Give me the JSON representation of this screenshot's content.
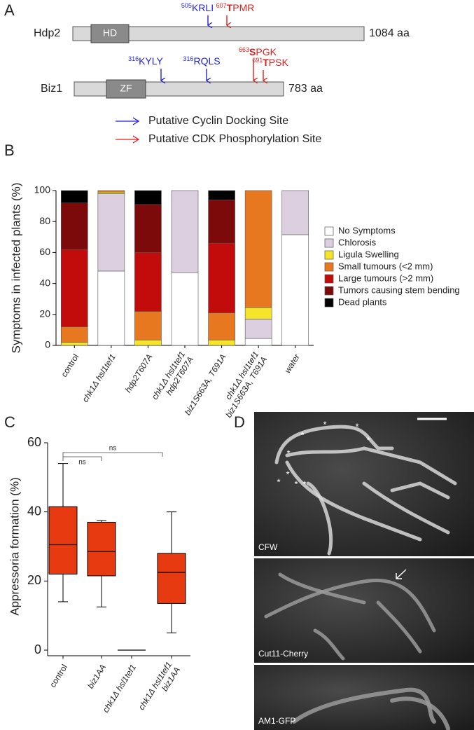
{
  "panel_a": {
    "letter": "A",
    "proteins": [
      {
        "name": "Hdp2",
        "domain": "HD",
        "length": "1084 aa",
        "sites": [
          {
            "sup": "505",
            "bold": "",
            "rest": "KRLI",
            "color": "#1f1fe0"
          },
          {
            "sup": "607",
            "bold": "T",
            "rest": "PMR",
            "color": "#e01f1f"
          }
        ]
      },
      {
        "name": "Biz1",
        "domain": "ZF",
        "length": "783 aa",
        "sites": [
          {
            "sup": "316",
            "bold": "",
            "rest": "KYLY",
            "color": "#1f1fe0"
          },
          {
            "sup": "316",
            "bold": "",
            "rest": "RQLS",
            "color": "#1f1fe0"
          },
          {
            "sup": "663",
            "bold": "S",
            "rest": "PGK",
            "color": "#e01f1f"
          },
          {
            "sup": "691",
            "bold": "T",
            "rest": "PSK",
            "color": "#e01f1f"
          }
        ]
      }
    ],
    "legend": [
      {
        "label": "Putative Cyclin Docking Site",
        "color": "#1f1fe0"
      },
      {
        "label": "Putative CDK Phosphorylation Site",
        "color": "#e01f1f"
      }
    ]
  },
  "chart_data": [
    {
      "type": "stacked_bar",
      "letter": "B",
      "y_label": "Symptoms in infected plants (%)",
      "categories": [
        [
          "control"
        ],
        [
          "chk1Δ hsl1tef1"
        ],
        [
          "hdp2T607A"
        ],
        [
          "chk1Δ hsl1tef1",
          "hdp2T607A"
        ],
        [
          "biz1S663A, T691A"
        ],
        [
          "chk1Δ hsl1tef1",
          "biz1S663A, T691A"
        ],
        [
          "water"
        ]
      ],
      "series": [
        {
          "name": "No Symptoms",
          "color": "#ffffff",
          "values": [
            0,
            48,
            0,
            47,
            0,
            4.5,
            71.5
          ]
        },
        {
          "name": "Chlorosis",
          "color": "#dccfe0",
          "values": [
            0,
            50,
            0,
            53,
            0,
            12.5,
            28.5
          ]
        },
        {
          "name": "Ligula Swelling",
          "color": "#f5e42a",
          "values": [
            2,
            1,
            3.5,
            0,
            3.5,
            7.5,
            0
          ]
        },
        {
          "name": "Small tumours (<2 mm)",
          "color": "#e8781f",
          "values": [
            10,
            1,
            18.5,
            0,
            17.5,
            75.5,
            0
          ]
        },
        {
          "name": "Large tumours (>2 mm)",
          "color": "#c20c0c",
          "values": [
            50,
            0,
            38,
            0,
            45,
            0,
            0
          ]
        },
        {
          "name": "Tumors causing stem bending",
          "color": "#7d0a0a",
          "values": [
            30,
            0,
            31,
            0,
            28,
            0,
            0
          ]
        },
        {
          "name": "Dead plants",
          "color": "#000000",
          "values": [
            8,
            0,
            9,
            0,
            6,
            0,
            0
          ]
        }
      ],
      "ylim": [
        0,
        100
      ],
      "yticks": [
        0,
        20,
        40,
        60,
        80,
        100
      ]
    },
    {
      "type": "box",
      "letter": "C",
      "y_label": "Appressoria formation (%)",
      "color": "#e83a10",
      "categories": [
        [
          "control"
        ],
        [
          "biz1AA"
        ],
        [
          "chk1Δ hsl1tef1"
        ],
        [
          "chk1Δ hsl1tef1",
          "biz1AA"
        ]
      ],
      "values": [
        {
          "min": 14,
          "q1": 22,
          "median": 30.5,
          "q3": 41.5,
          "max": 54
        },
        {
          "min": 12.5,
          "q1": 21.5,
          "median": 28.5,
          "q3": 37,
          "max": 37.5
        },
        {
          "min": 0,
          "q1": 0,
          "median": 0,
          "q3": 0,
          "max": 0
        },
        {
          "min": 5,
          "q1": 13.5,
          "median": 22.5,
          "q3": 28,
          "max": 40
        }
      ],
      "annotations": [
        "ns",
        "ns"
      ],
      "ylim": [
        0,
        60
      ],
      "yticks": [
        0,
        20,
        40,
        60
      ]
    }
  ],
  "panel_d": {
    "letter": "D",
    "images": [
      "CFW",
      "Cut11-Cherry",
      "AM1-GFP"
    ],
    "marks": [
      "*",
      "*",
      "*",
      "*",
      "*",
      "*",
      "*",
      "*",
      "*"
    ]
  }
}
